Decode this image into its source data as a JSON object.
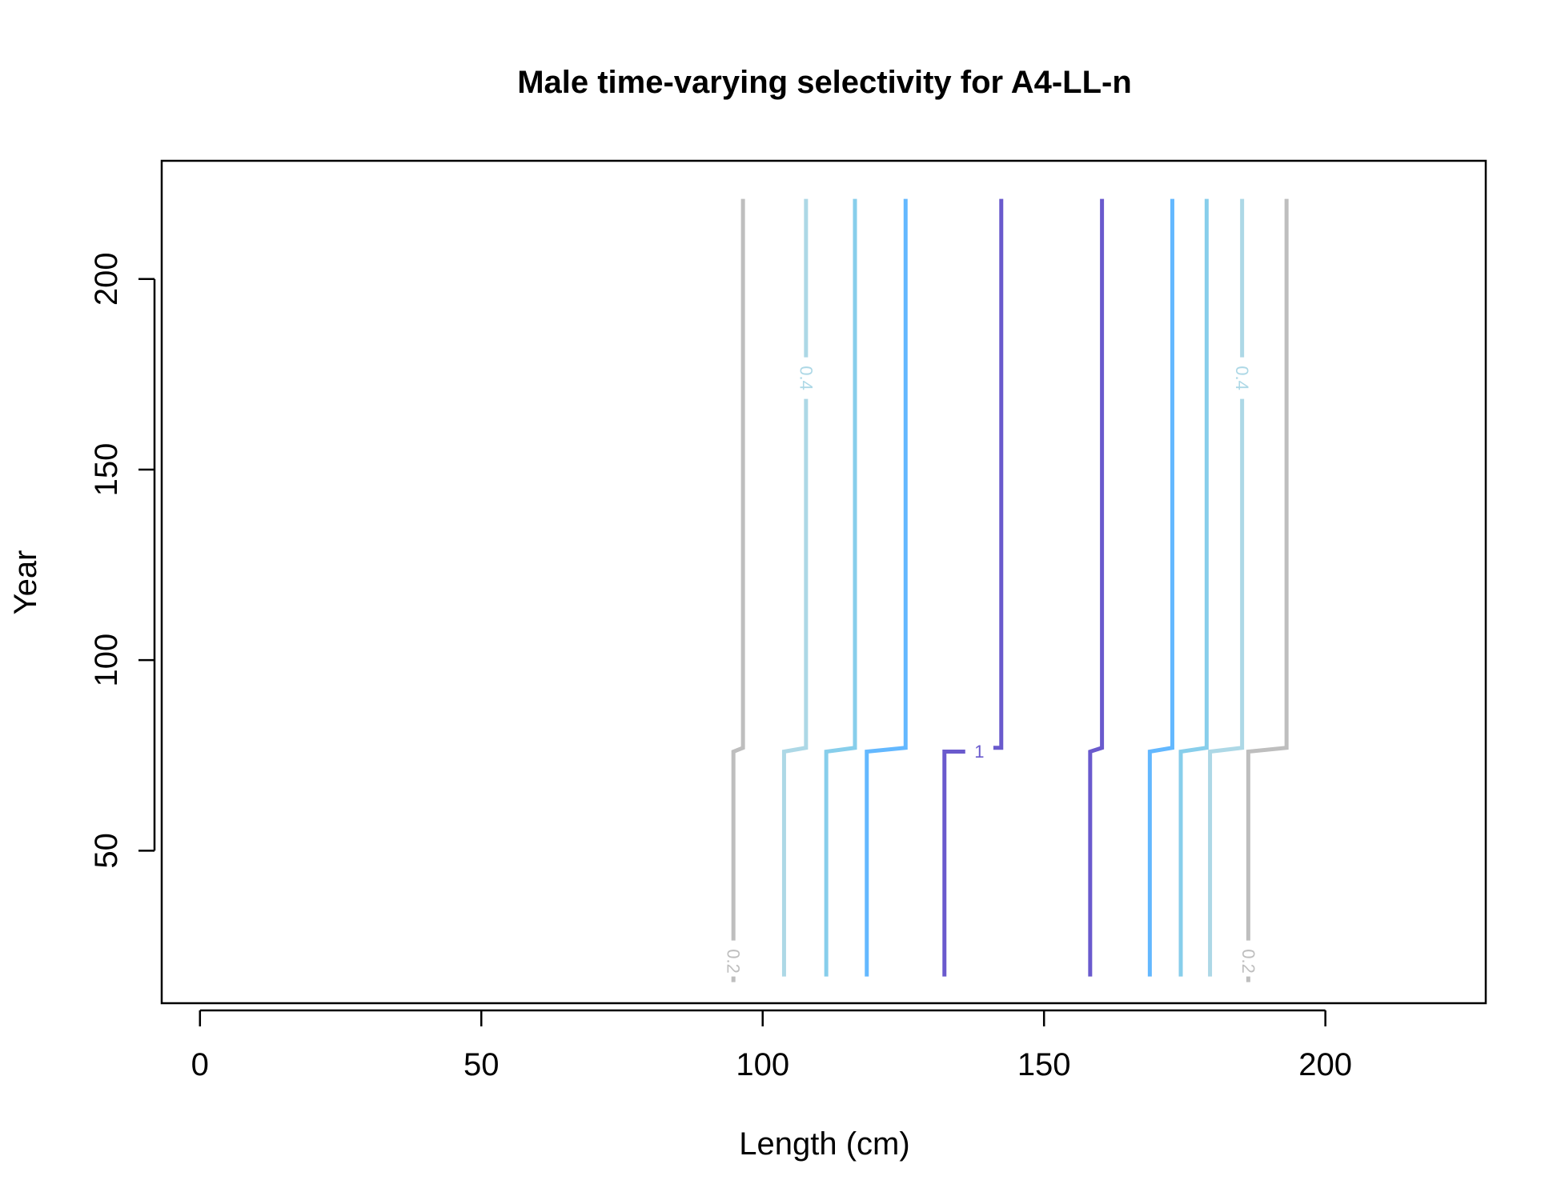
{
  "chart_data": {
    "type": "line",
    "title": "Male time-varying selectivity for A4-LL-n",
    "xlabel": "Length (cm)",
    "ylabel": "Year",
    "xlim": [
      -6.8,
      228.5
    ],
    "ylim": [
      10,
      231
    ],
    "xticks": [
      0,
      50,
      100,
      150,
      200
    ],
    "yticks": [
      50,
      100,
      150,
      200
    ],
    "grid": false,
    "legend": "none",
    "series": [
      {
        "level": "0.2",
        "color": "#bebebe",
        "label": "0.2",
        "label_x": 94.8,
        "label_y": 21,
        "points": [
          [
            94.8,
            17
          ],
          [
            94.8,
            76
          ],
          [
            96.5,
            77
          ],
          [
            96.5,
            221
          ]
        ]
      },
      {
        "level": "0.4",
        "color": "#add8e6",
        "label": "0.4",
        "label_x": 107.7,
        "label_y": 174,
        "points": [
          [
            103.8,
            17
          ],
          [
            103.8,
            76
          ],
          [
            107.7,
            77
          ],
          [
            107.7,
            221
          ]
        ]
      },
      {
        "level": "0.6",
        "color": "#87ceeb",
        "label": "",
        "points": [
          [
            111.3,
            17
          ],
          [
            111.3,
            76
          ],
          [
            116.4,
            77
          ],
          [
            116.4,
            221
          ]
        ]
      },
      {
        "level": "0.8",
        "color": "#63b8ff",
        "label": "",
        "points": [
          [
            118.5,
            17
          ],
          [
            118.5,
            76
          ],
          [
            125.4,
            77
          ],
          [
            125.4,
            221
          ]
        ]
      },
      {
        "level": "1",
        "color": "#6a5acd",
        "label": "1",
        "label_x": 138.5,
        "label_y": 76,
        "points": [
          [
            132.3,
            17
          ],
          [
            132.3,
            76
          ],
          [
            136,
            76
          ]
        ]
      },
      {
        "level": "1",
        "color": "#6a5acd",
        "label": "",
        "points": [
          [
            141,
            77
          ],
          [
            142.4,
            77
          ],
          [
            142.4,
            221
          ]
        ]
      },
      {
        "level": "1",
        "color": "#6a5acd",
        "label": "",
        "points": [
          [
            158.2,
            17
          ],
          [
            158.2,
            76
          ],
          [
            160.3,
            77
          ],
          [
            160.3,
            221
          ]
        ]
      },
      {
        "level": "0.8",
        "color": "#63b8ff",
        "label": "",
        "points": [
          [
            168.8,
            17
          ],
          [
            168.8,
            76
          ],
          [
            172.8,
            77
          ],
          [
            172.8,
            221
          ]
        ]
      },
      {
        "level": "0.6",
        "color": "#87ceeb",
        "label": "",
        "points": [
          [
            174.3,
            17
          ],
          [
            174.3,
            76
          ],
          [
            178.9,
            77
          ],
          [
            178.9,
            221
          ]
        ]
      },
      {
        "level": "0.4",
        "color": "#add8e6",
        "label": "0.4",
        "label_x": 185.2,
        "label_y": 174,
        "points": [
          [
            179.5,
            17
          ],
          [
            179.5,
            76
          ],
          [
            185.2,
            77
          ],
          [
            185.2,
            221
          ]
        ]
      },
      {
        "level": "0.2",
        "color": "#bebebe",
        "label": "0.2",
        "label_x": 186.3,
        "label_y": 21,
        "points": [
          [
            186.3,
            17
          ],
          [
            186.3,
            76
          ],
          [
            193.1,
            77
          ],
          [
            193.1,
            221
          ]
        ]
      }
    ]
  }
}
